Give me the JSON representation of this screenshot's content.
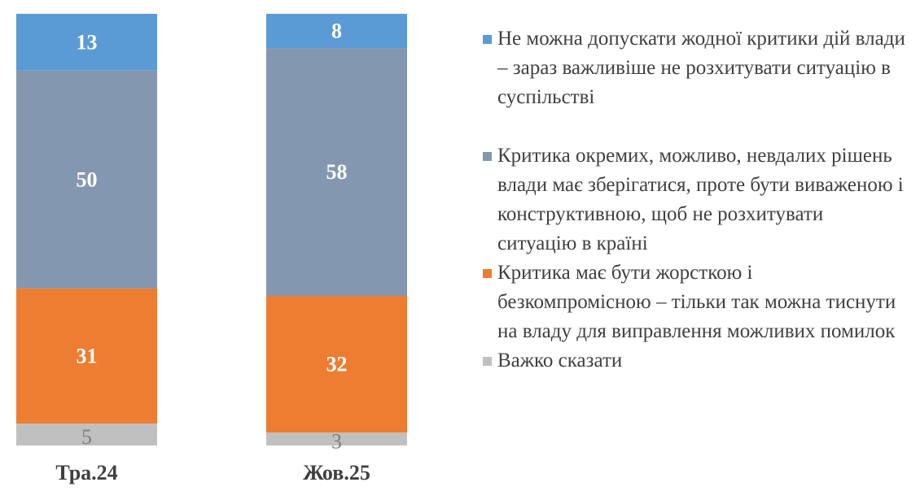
{
  "chart_data": {
    "type": "bar",
    "stacked": true,
    "categories": [
      "Тра.24",
      "Жов.25"
    ],
    "series": [
      {
        "name": "Не можна допускати жодної критики дій влади – зараз важливіше не розхитувати ситуацію в суспільстві",
        "values": [
          13,
          8
        ],
        "color": "#5b9bd5"
      },
      {
        "name": "Критика окремих, можливо, невдалих рішень влади має зберігатися, проте бути виваженою і конструктивною, щоб не розхитувати ситуацію в країні",
        "values": [
          50,
          58
        ],
        "color": "#8497b0"
      },
      {
        "name": "Критика має бути жорсткою і безкомпромісною – тільки так можна тиснути на владу для виправлення можливих помилок",
        "values": [
          31,
          32
        ],
        "color": "#ed7d31"
      },
      {
        "name": "Важко сказати",
        "values": [
          5,
          3
        ],
        "color": "#c0c0c0"
      }
    ],
    "data_labels": true,
    "legend_position": "right",
    "grid": false,
    "title": "",
    "xlabel": "",
    "ylabel": ""
  }
}
